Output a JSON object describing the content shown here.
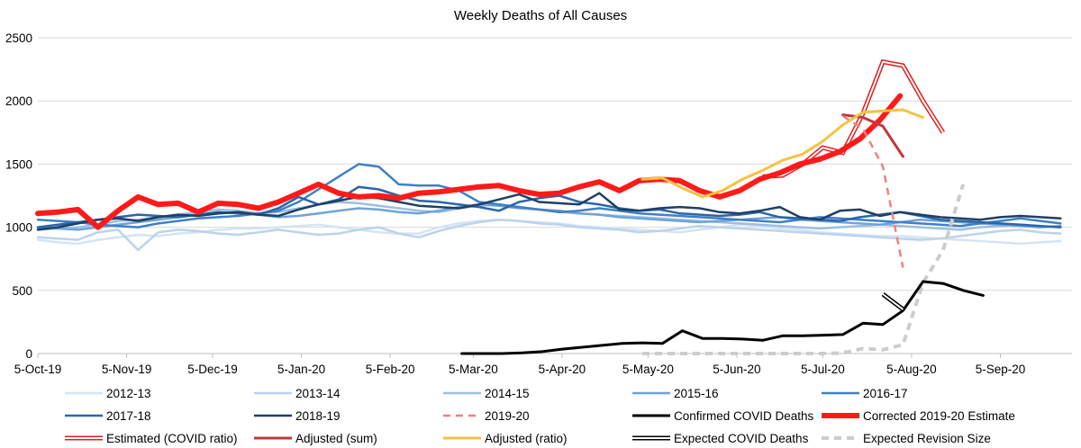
{
  "chart_data": {
    "type": "line",
    "title": "Weekly Deaths of All Causes",
    "xlabel": "",
    "ylabel": "",
    "x_ticks": [
      "5-Oct-19",
      "5-Nov-19",
      "5-Dec-19",
      "5-Jan-20",
      "5-Feb-20",
      "5-Mar-20",
      "5-Apr-20",
      "5-May-20",
      "5-Jun-20",
      "5-Jul-20",
      "5-Aug-20",
      "5-Sep-20"
    ],
    "x_range": [
      "2019-10-05",
      "2020-09-30"
    ],
    "y_ticks": [
      0,
      500,
      1000,
      1500,
      2000,
      2500
    ],
    "ylim": [
      0,
      2500
    ],
    "grid": "horizontal",
    "legend_position": "bottom",
    "series": [
      {
        "name": "2012-13",
        "color": "#d6e4f3",
        "style": "solid",
        "start": "2019-10-05",
        "values": [
          900,
          880,
          870,
          900,
          920,
          940,
          930,
          950,
          960,
          980,
          990,
          990,
          1000,
          1010,
          1020,
          1000,
          980,
          960,
          950,
          950,
          1000,
          1030,
          1050,
          1060,
          1050,
          1040,
          1030,
          1010,
          1000,
          990,
          980,
          970,
          960,
          980,
          1000,
          1020,
          1010,
          990,
          980,
          960,
          950,
          940,
          930,
          930,
          920,
          910,
          900,
          890,
          880,
          870,
          880,
          890,
          900,
          890,
          880,
          870,
          860,
          850
        ]
      },
      {
        "name": "2013-14",
        "color": "#bcd3ec",
        "style": "solid",
        "start": "2019-10-05",
        "values": [
          920,
          910,
          900,
          960,
          980,
          820,
          960,
          980,
          970,
          950,
          940,
          960,
          980,
          960,
          940,
          950,
          980,
          1000,
          950,
          920,
          970,
          1010,
          1040,
          1060,
          1050,
          1030,
          1020,
          1000,
          990,
          980,
          960,
          970,
          990,
          1010,
          1000,
          990,
          980,
          970,
          960,
          950,
          940,
          930,
          920,
          910,
          900,
          910,
          930,
          950,
          970,
          980,
          960,
          950,
          940,
          930,
          920,
          910,
          900,
          880
        ]
      },
      {
        "name": "2014-15",
        "color": "#9dbfe4",
        "style": "solid",
        "start": "2019-10-05",
        "values": [
          980,
          990,
          1000,
          1020,
          1050,
          1060,
          1080,
          1100,
          1120,
          1140,
          1130,
          1110,
          1120,
          1150,
          1180,
          1200,
          1190,
          1170,
          1150,
          1130,
          1120,
          1150,
          1170,
          1180,
          1160,
          1140,
          1120,
          1110,
          1100,
          1090,
          1080,
          1070,
          1060,
          1050,
          1040,
          1030,
          1020,
          1010,
          1000,
          990,
          1000,
          1010,
          1020,
          1010,
          1000,
          990,
          980,
          1000,
          1010,
          1020,
          1010,
          1000,
          990,
          980,
          970,
          960,
          950,
          940
        ]
      },
      {
        "name": "2015-16",
        "color": "#6fa3d8",
        "style": "solid",
        "start": "2019-10-05",
        "values": [
          1000,
          990,
          980,
          1000,
          1020,
          1040,
          1060,
          1080,
          1100,
          1110,
          1120,
          1100,
          1080,
          1090,
          1110,
          1130,
          1150,
          1140,
          1120,
          1110,
          1130,
          1160,
          1180,
          1170,
          1150,
          1140,
          1130,
          1110,
          1100,
          1080,
          1070,
          1060,
          1050,
          1040,
          1050,
          1060,
          1070,
          1080,
          1060,
          1050,
          1040,
          1030,
          1020,
          1040,
          1060,
          1050,
          1040,
          1030,
          1020,
          1010,
          1000,
          1010,
          1020,
          1030,
          1040,
          1050,
          1060,
          1070
        ]
      },
      {
        "name": "2016-17",
        "color": "#3f80c4",
        "style": "solid",
        "start": "2019-10-05",
        "values": [
          1060,
          1050,
          1040,
          1020,
          1010,
          1000,
          1030,
          1050,
          1070,
          1080,
          1090,
          1110,
          1130,
          1200,
          1300,
          1400,
          1500,
          1480,
          1340,
          1330,
          1330,
          1290,
          1200,
          1180,
          1160,
          1140,
          1120,
          1130,
          1150,
          1130,
          1110,
          1100,
          1090,
          1080,
          1070,
          1060,
          1050,
          1040,
          1060,
          1080,
          1070,
          1060,
          1050,
          1040,
          1030,
          1020,
          1010,
          1030,
          1050,
          1070,
          1050,
          1030,
          1040,
          1050,
          1060,
          1040,
          1030,
          1050
        ]
      },
      {
        "name": "2017-18",
        "color": "#2a66a8",
        "style": "solid",
        "start": "2019-10-05",
        "values": [
          1000,
          1020,
          1040,
          1060,
          1080,
          1100,
          1090,
          1080,
          1100,
          1120,
          1110,
          1100,
          1150,
          1240,
          1180,
          1220,
          1320,
          1300,
          1250,
          1210,
          1200,
          1180,
          1160,
          1130,
          1200,
          1230,
          1250,
          1200,
          1180,
          1150,
          1130,
          1140,
          1110,
          1100,
          1090,
          1100,
          1120,
          1080,
          1070,
          1060,
          1050,
          1080,
          1100,
          1120,
          1090,
          1060,
          1050,
          1040,
          1030,
          1020,
          1010,
          1000,
          1020,
          1040,
          1060,
          1080,
          1100,
          1110
        ]
      },
      {
        "name": "2018-19",
        "color": "#1f3f66",
        "style": "solid",
        "start": "2019-10-05",
        "values": [
          980,
          1000,
          1030,
          1060,
          1070,
          1050,
          1080,
          1100,
          1090,
          1110,
          1120,
          1100,
          1090,
          1140,
          1180,
          1210,
          1240,
          1230,
          1200,
          1170,
          1160,
          1150,
          1180,
          1220,
          1260,
          1200,
          1190,
          1180,
          1270,
          1140,
          1130,
          1150,
          1160,
          1150,
          1120,
          1110,
          1130,
          1160,
          1080,
          1060,
          1130,
          1140,
          1090,
          1120,
          1100,
          1080,
          1070,
          1060,
          1080,
          1090,
          1080,
          1070,
          1060,
          1090,
          1140,
          1170,
          1060,
          1150
        ]
      },
      {
        "name": "2019-20",
        "color": "#f08080",
        "style": "dashed",
        "start": "2020-07-12",
        "values": [
          1880,
          1780,
          1480,
          680
        ]
      },
      {
        "name": "Confirmed COVID Deaths",
        "color": "#000000",
        "style": "solid",
        "width": 3,
        "start": "2020-03-01",
        "values": [
          0,
          0,
          0,
          5,
          15,
          35,
          50,
          65,
          80,
          85,
          80,
          180,
          120,
          120,
          115,
          105,
          140,
          140,
          145,
          150,
          240,
          230,
          340,
          570,
          555,
          500,
          460
        ]
      },
      {
        "name": "Corrected 2019-20 Estimate",
        "color": "#ff1a1a",
        "style": "solid",
        "width": 6,
        "start": "2019-10-05",
        "values": [
          1110,
          1120,
          1140,
          1000,
          1130,
          1240,
          1180,
          1190,
          1120,
          1190,
          1180,
          1150,
          1200,
          1270,
          1340,
          1270,
          1240,
          1250,
          1230,
          1270,
          1280,
          1300,
          1320,
          1330,
          1290,
          1260,
          1270,
          1320,
          1360,
          1290,
          1370,
          1380,
          1370,
          1290,
          1240,
          1290,
          1380,
          1430,
          1500,
          1540,
          1600,
          1700,
          1850,
          2040
        ]
      },
      {
        "name": "Estimated (COVID ratio)",
        "color": "#e0201e",
        "style": "double",
        "start": "2020-06-14",
        "values": [
          1400,
          1410,
          1500,
          1630,
          1590,
          1900,
          2310,
          2280,
          2000,
          1750
        ]
      },
      {
        "name": "Adjusted (sum)",
        "color": "#c0393b",
        "style": "solid",
        "width": 3,
        "start": "2020-07-12",
        "values": [
          1890,
          1870,
          1800,
          1560
        ]
      },
      {
        "name": "Adjusted (ratio)",
        "color": "#f5c242",
        "style": "solid",
        "width": 3,
        "start": "2020-05-03",
        "values": [
          1380,
          1390,
          1310,
          1240,
          1290,
          1380,
          1450,
          1530,
          1580,
          1680,
          1810,
          1910,
          1920,
          1930,
          1870
        ]
      },
      {
        "name": "Expected COVID Deaths",
        "color": "#000000",
        "style": "double",
        "start": "2020-07-26",
        "values": [
          470,
          350
        ]
      },
      {
        "name": "Expected Revision Size",
        "color": "#cccccc",
        "style": "dashed",
        "width": 4,
        "start": "2020-05-03",
        "values": [
          0,
          0,
          0,
          0,
          0,
          0,
          0,
          0,
          0,
          0,
          5,
          40,
          30,
          70,
          560,
          820,
          1340
        ]
      }
    ]
  }
}
